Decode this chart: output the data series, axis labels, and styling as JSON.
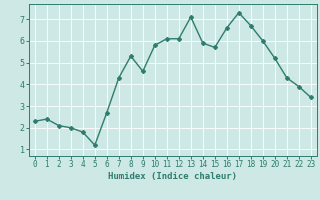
{
  "x": [
    0,
    1,
    2,
    3,
    4,
    5,
    6,
    7,
    8,
    9,
    10,
    11,
    12,
    13,
    14,
    15,
    16,
    17,
    18,
    19,
    20,
    21,
    22,
    23
  ],
  "y": [
    2.3,
    2.4,
    2.1,
    2.0,
    1.8,
    1.2,
    2.7,
    4.3,
    5.3,
    4.6,
    5.8,
    6.1,
    6.1,
    7.1,
    5.9,
    5.7,
    6.6,
    7.3,
    6.7,
    6.0,
    5.2,
    4.3,
    3.9,
    3.4
  ],
  "xlabel": "Humidex (Indice chaleur)",
  "line_color": "#2e7d6e",
  "marker": "D",
  "marker_size": 2.0,
  "line_width": 1.0,
  "bg_color": "#cde8e5",
  "grid_color": "#ffffff",
  "tick_color": "#2e7d6e",
  "label_color": "#2e7d6e",
  "xlim": [
    -0.5,
    23.5
  ],
  "ylim": [
    0.7,
    7.7
  ],
  "yticks": [
    1,
    2,
    3,
    4,
    5,
    6,
    7
  ],
  "xticks": [
    0,
    1,
    2,
    3,
    4,
    5,
    6,
    7,
    8,
    9,
    10,
    11,
    12,
    13,
    14,
    15,
    16,
    17,
    18,
    19,
    20,
    21,
    22,
    23
  ],
  "tick_fontsize": 5.5,
  "xlabel_fontsize": 6.5,
  "xlabel_fontweight": "bold"
}
